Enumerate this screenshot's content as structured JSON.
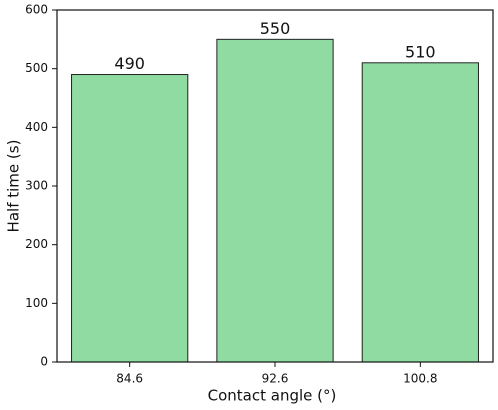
{
  "chart_data": {
    "type": "bar",
    "x_label": "Contact angle (°)",
    "y_label": "Half time (s)",
    "categories": [
      "84.6",
      "92.6",
      "100.8"
    ],
    "values": [
      490,
      550,
      510
    ],
    "color": "#8fdba2",
    "ylim": [
      0,
      600
    ],
    "yticks": [
      0,
      100,
      200,
      300,
      400,
      500,
      600
    ]
  }
}
